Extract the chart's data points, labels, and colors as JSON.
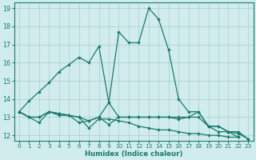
{
  "x": [
    0,
    1,
    2,
    3,
    4,
    5,
    6,
    7,
    8,
    9,
    10,
    11,
    12,
    13,
    14,
    15,
    16,
    17,
    18,
    19,
    20,
    21,
    22,
    23
  ],
  "series_main": [
    13.3,
    13.9,
    14.4,
    14.9,
    15.5,
    15.9,
    16.3,
    16.0,
    16.9,
    13.8,
    17.7,
    17.1,
    17.1,
    19.0,
    18.4,
    16.7,
    14.0,
    13.3,
    13.3,
    12.5,
    12.2,
    12.2,
    11.9,
    null
  ],
  "series2": [
    13.3,
    13.0,
    13.0,
    13.3,
    13.2,
    13.1,
    12.7,
    12.8,
    13.0,
    12.6,
    13.0,
    13.0,
    13.0,
    13.0,
    13.0,
    13.0,
    12.9,
    13.0,
    13.0,
    12.5,
    12.5,
    12.2,
    12.1,
    11.8
  ],
  "series3": [
    13.3,
    13.0,
    12.7,
    13.3,
    13.1,
    13.1,
    13.0,
    12.4,
    12.9,
    12.9,
    12.8,
    12.7,
    12.5,
    12.4,
    12.3,
    12.3,
    12.2,
    12.1,
    12.1,
    12.0,
    12.0,
    11.9,
    11.9,
    null
  ],
  "series4": [
    13.3,
    13.0,
    13.0,
    13.3,
    13.2,
    13.1,
    13.0,
    12.8,
    13.0,
    13.8,
    13.0,
    13.0,
    13.0,
    13.0,
    13.0,
    13.0,
    13.0,
    13.0,
    13.3,
    12.5,
    12.5,
    12.2,
    12.2,
    11.8
  ],
  "line_color": "#1a7a6e",
  "bg_color": "#d0ecec",
  "grid_color": "#a8cccc",
  "xlabel": "Humidex (Indice chaleur)",
  "xlim": [
    -0.5,
    23.5
  ],
  "ylim": [
    11.7,
    19.3
  ],
  "yticks": [
    12,
    13,
    14,
    15,
    16,
    17,
    18,
    19
  ],
  "xticks": [
    0,
    1,
    2,
    3,
    4,
    5,
    6,
    7,
    8,
    9,
    10,
    11,
    12,
    13,
    14,
    15,
    16,
    17,
    18,
    19,
    20,
    21,
    22,
    23
  ]
}
